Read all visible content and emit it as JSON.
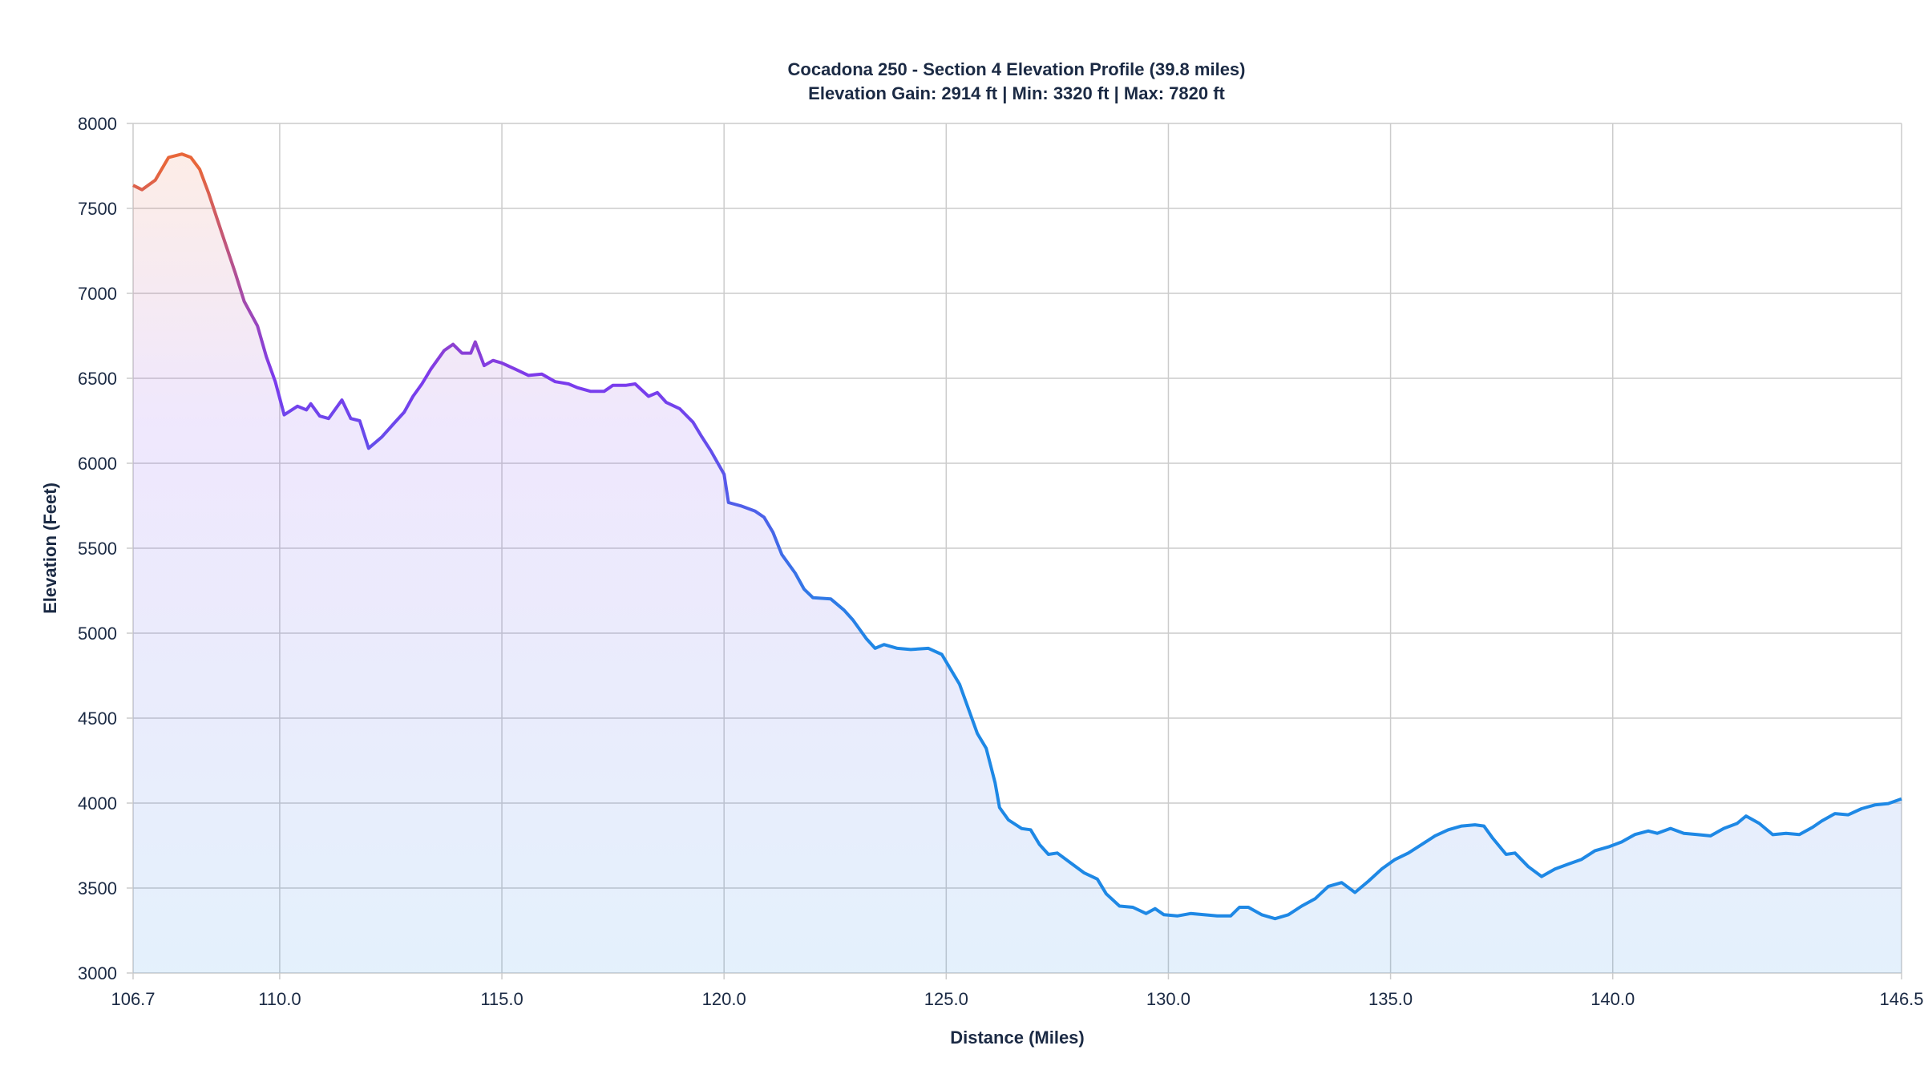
{
  "chart_data": {
    "type": "area",
    "title": "Cocadona 250 - Section 4 Elevation Profile (39.8 miles)",
    "subtitle": "Elevation Gain: 2914 ft | Min: 3320 ft | Max: 7820 ft",
    "xlabel": "Distance (Miles)",
    "ylabel": "Elevation (Feet)",
    "xlim": [
      106.7,
      146.5
    ],
    "ylim": [
      3000,
      8000
    ],
    "grid": true,
    "x_ticks": [
      "106.7",
      "110.0",
      "115.0",
      "120.0",
      "125.0",
      "130.0",
      "135.0",
      "140.0",
      "146.5"
    ],
    "y_ticks": [
      "3000",
      "3500",
      "4000",
      "4500",
      "5000",
      "5500",
      "6000",
      "6500",
      "7000",
      "7500",
      "8000"
    ],
    "colors": {
      "high": "#e8663a",
      "mid": "#7c3aed",
      "low": "#1e88e5"
    },
    "x": [
      106.7,
      106.9,
      107.2,
      107.5,
      107.8,
      108.0,
      108.2,
      108.4,
      108.7,
      109.0,
      109.2,
      109.5,
      109.7,
      109.9,
      110.1,
      110.4,
      110.6,
      110.7,
      110.9,
      111.1,
      111.4,
      111.6,
      111.8,
      112.0,
      112.3,
      112.6,
      112.8,
      113.0,
      113.2,
      113.4,
      113.7,
      113.9,
      114.1,
      114.3,
      114.4,
      114.6,
      114.8,
      115.0,
      115.3,
      115.6,
      115.9,
      116.2,
      116.5,
      116.7,
      117.0,
      117.3,
      117.5,
      117.8,
      118.0,
      118.3,
      118.5,
      118.7,
      119.0,
      119.3,
      119.5,
      119.7,
      120.0,
      120.1,
      120.4,
      120.7,
      120.9,
      121.1,
      121.3,
      121.6,
      121.8,
      122.0,
      122.4,
      122.7,
      122.9,
      123.2,
      123.4,
      123.6,
      123.9,
      124.2,
      124.6,
      124.9,
      125.1,
      125.3,
      125.5,
      125.7,
      125.9,
      126.1,
      126.2,
      126.4,
      126.7,
      126.9,
      127.1,
      127.3,
      127.5,
      127.8,
      128.1,
      128.4,
      128.6,
      128.9,
      129.2,
      129.5,
      129.7,
      129.9,
      130.2,
      130.5,
      130.8,
      131.1,
      131.4,
      131.6,
      131.8,
      132.1,
      132.4,
      132.7,
      133.0,
      133.3,
      133.6,
      133.9,
      134.2,
      134.5,
      134.8,
      135.1,
      135.4,
      135.7,
      136.0,
      136.3,
      136.6,
      136.9,
      137.1,
      137.3,
      137.6,
      137.8,
      138.1,
      138.4,
      138.7,
      139.0,
      139.3,
      139.6,
      139.9,
      140.2,
      140.5,
      140.8,
      141.0,
      141.3,
      141.6,
      141.9,
      142.2,
      142.5,
      142.8,
      143.0,
      143.3,
      143.6,
      143.9,
      144.2,
      144.5,
      144.7,
      145.0,
      145.3,
      145.6,
      145.9,
      146.2,
      146.5
    ],
    "y": [
      7636,
      7610,
      7666,
      7800,
      7820,
      7800,
      7730,
      7590,
      7353,
      7120,
      6953,
      6808,
      6626,
      6480,
      6285,
      6336,
      6314,
      6350,
      6278,
      6263,
      6372,
      6263,
      6250,
      6088,
      6155,
      6243,
      6300,
      6394,
      6467,
      6554,
      6663,
      6700,
      6648,
      6648,
      6714,
      6575,
      6605,
      6590,
      6554,
      6517,
      6525,
      6480,
      6467,
      6445,
      6423,
      6423,
      6459,
      6459,
      6467,
      6394,
      6416,
      6358,
      6321,
      6242,
      6155,
      6074,
      5936,
      5769,
      5747,
      5718,
      5682,
      5594,
      5463,
      5354,
      5260,
      5209,
      5202,
      5136,
      5078,
      4969,
      4911,
      4933,
      4911,
      4904,
      4911,
      4875,
      4787,
      4700,
      4555,
      4410,
      4322,
      4119,
      3974,
      3901,
      3850,
      3843,
      3756,
      3698,
      3706,
      3648,
      3590,
      3553,
      3466,
      3394,
      3387,
      3350,
      3379,
      3343,
      3336,
      3350,
      3343,
      3336,
      3336,
      3387,
      3387,
      3343,
      3320,
      3343,
      3394,
      3437,
      3510,
      3532,
      3474,
      3540,
      3612,
      3668,
      3706,
      3756,
      3807,
      3843,
      3865,
      3872,
      3865,
      3793,
      3698,
      3706,
      3626,
      3568,
      3612,
      3641,
      3669,
      3720,
      3742,
      3771,
      3815,
      3836,
      3822,
      3851,
      3822,
      3815,
      3807,
      3851,
      3880,
      3924,
      3880,
      3814,
      3822,
      3815,
      3858,
      3894,
      3938,
      3931,
      3967,
      3989,
      3997,
      4025
    ]
  }
}
